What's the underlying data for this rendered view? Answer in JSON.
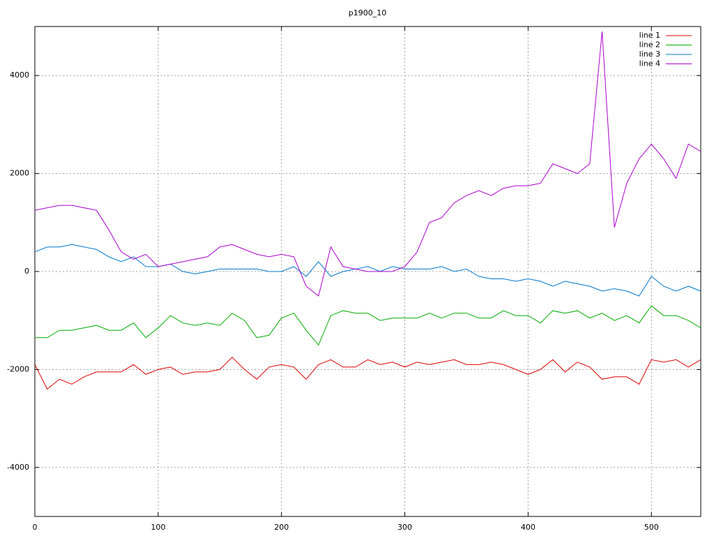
{
  "chart_data": {
    "type": "line",
    "title": "p1900_10",
    "x": [
      0,
      10,
      20,
      30,
      40,
      50,
      60,
      70,
      80,
      90,
      100,
      110,
      120,
      130,
      140,
      150,
      160,
      170,
      180,
      190,
      200,
      210,
      220,
      230,
      240,
      250,
      260,
      270,
      280,
      290,
      300,
      310,
      320,
      330,
      340,
      350,
      360,
      370,
      380,
      390,
      400,
      410,
      420,
      430,
      440,
      450,
      460,
      470,
      480,
      490,
      500,
      510,
      520,
      530,
      540
    ],
    "series": [
      {
        "name": "line 1",
        "color": "#dd0000",
        "values": [
          -1900,
          -2400,
          -2200,
          -2300,
          -2150,
          -2050,
          -2050,
          -2050,
          -1900,
          -2100,
          -2000,
          -1950,
          -2100,
          -2050,
          -2050,
          -2000,
          -1750,
          -2000,
          -2200,
          -1950,
          -1900,
          -1950,
          -2200,
          -1900,
          -1800,
          -1950,
          -1950,
          -1800,
          -1900,
          -1850,
          -1950,
          -1850,
          -1900,
          -1850,
          -1800,
          -1900,
          -1900,
          -1850,
          -1900,
          -2000,
          -2100,
          -2000,
          -1800,
          -2050,
          -1850,
          -1950,
          -2200,
          -2150,
          -2150,
          -2300,
          -1800,
          -1850,
          -1800,
          -1950,
          -1800
        ]
      },
      {
        "name": "line 2",
        "color": "#00aa00",
        "values": [
          -1350,
          -1350,
          -1200,
          -1200,
          -1150,
          -1100,
          -1200,
          -1200,
          -1050,
          -1350,
          -1150,
          -900,
          -1050,
          -1100,
          -1050,
          -1100,
          -850,
          -1000,
          -1350,
          -1300,
          -950,
          -850,
          -1200,
          -1500,
          -900,
          -800,
          -850,
          -850,
          -1000,
          -950,
          -950,
          -950,
          -850,
          -950,
          -850,
          -850,
          -950,
          -950,
          -800,
          -900,
          -900,
          -1050,
          -800,
          -850,
          -800,
          -950,
          -850,
          -1000,
          -900,
          -1050,
          -700,
          -900,
          -900,
          -1000,
          -1150
        ]
      },
      {
        "name": "line 3",
        "color": "#0077cc",
        "values": [
          400,
          500,
          500,
          550,
          500,
          450,
          300,
          200,
          300,
          100,
          100,
          150,
          0,
          -50,
          0,
          50,
          50,
          50,
          50,
          0,
          0,
          100,
          -100,
          200,
          -100,
          0,
          50,
          100,
          0,
          100,
          50,
          50,
          50,
          100,
          0,
          50,
          -100,
          -150,
          -150,
          -200,
          -150,
          -200,
          -300,
          -200,
          -250,
          -300,
          -400,
          -350,
          -400,
          -500,
          -100,
          -300,
          -400,
          -300,
          -400
        ]
      },
      {
        "name": "line 4",
        "color": "#aa00cc",
        "values": [
          1250,
          1300,
          1350,
          1350,
          1300,
          1250,
          850,
          400,
          250,
          350,
          100,
          150,
          200,
          250,
          300,
          500,
          550,
          450,
          350,
          300,
          350,
          300,
          -300,
          -500,
          500,
          100,
          50,
          0,
          0,
          0,
          100,
          400,
          1000,
          1100,
          1400,
          1550,
          1650,
          1550,
          1700,
          1750,
          1750,
          1800,
          2200,
          2100,
          2000,
          2200,
          4900,
          900,
          1800,
          2300,
          2600,
          2300,
          1900,
          2600,
          2450
        ]
      }
    ],
    "xlim": [
      0,
      540
    ],
    "ylim": [
      -5000,
      5000
    ],
    "xticks": [
      0,
      100,
      200,
      300,
      400,
      500
    ],
    "yticks": [
      -4000,
      -2000,
      0,
      2000,
      4000
    ],
    "grid": true,
    "legend": "top right"
  }
}
